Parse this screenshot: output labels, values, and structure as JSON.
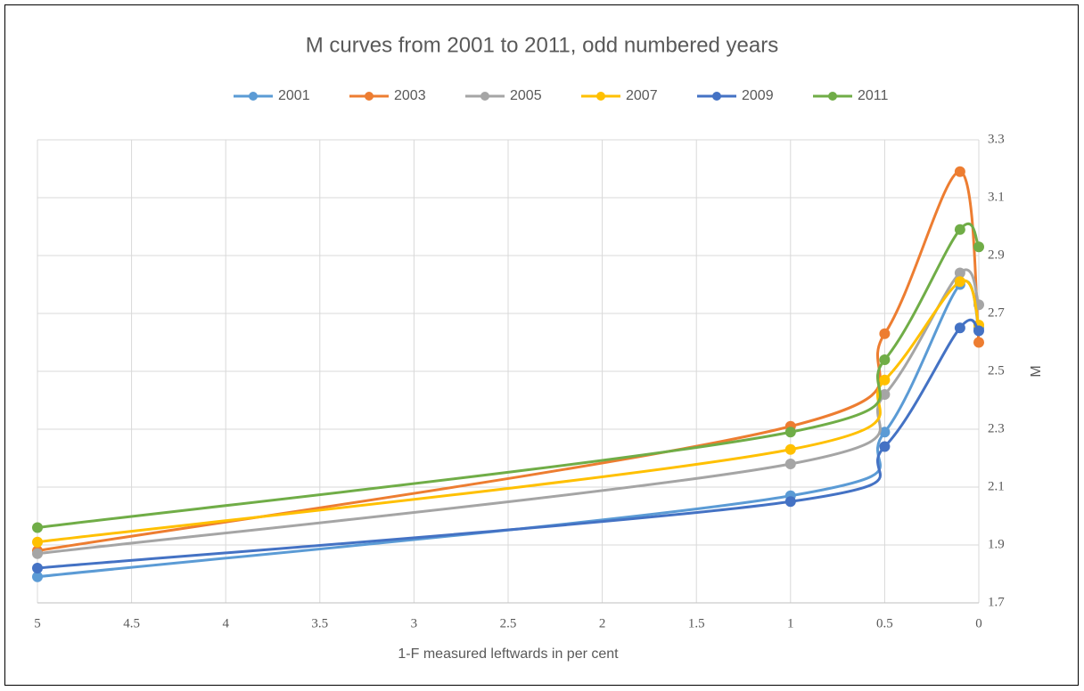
{
  "chart_data": {
    "type": "line",
    "smooth": true,
    "title": "M curves from 2001 to 2011, odd numbered years",
    "x_label": "1-F measured leftwards in per cent",
    "y_label": "M",
    "y_axis_side": "right",
    "legend": "top",
    "grid": true,
    "x": [
      5,
      1,
      0.5,
      0.1,
      0
    ],
    "xlim": [
      5,
      0
    ],
    "xticks": [
      5,
      4.5,
      4,
      3.5,
      3,
      2.5,
      2,
      1.5,
      1,
      0.5,
      0
    ],
    "ylim": [
      1.7,
      3.3
    ],
    "yticks": [
      1.7,
      1.9,
      2.1,
      2.3,
      2.5,
      2.7,
      2.9,
      3.1,
      3.3
    ],
    "series": [
      {
        "name": "2001",
        "color": "#5b9bd5",
        "values": [
          1.79,
          2.07,
          2.29,
          2.8,
          2.65
        ]
      },
      {
        "name": "2003",
        "color": "#ed7d31",
        "values": [
          1.88,
          2.31,
          2.63,
          3.19,
          2.6
        ]
      },
      {
        "name": "2005",
        "color": "#a5a5a5",
        "values": [
          1.87,
          2.18,
          2.42,
          2.84,
          2.73
        ]
      },
      {
        "name": "2007",
        "color": "#ffc000",
        "values": [
          1.91,
          2.23,
          2.47,
          2.81,
          2.66
        ]
      },
      {
        "name": "2009",
        "color": "#4472c4",
        "values": [
          1.82,
          2.05,
          2.24,
          2.65,
          2.64
        ]
      },
      {
        "name": "2011",
        "color": "#70ad47",
        "values": [
          1.96,
          2.29,
          2.54,
          2.99,
          2.93
        ]
      }
    ]
  }
}
